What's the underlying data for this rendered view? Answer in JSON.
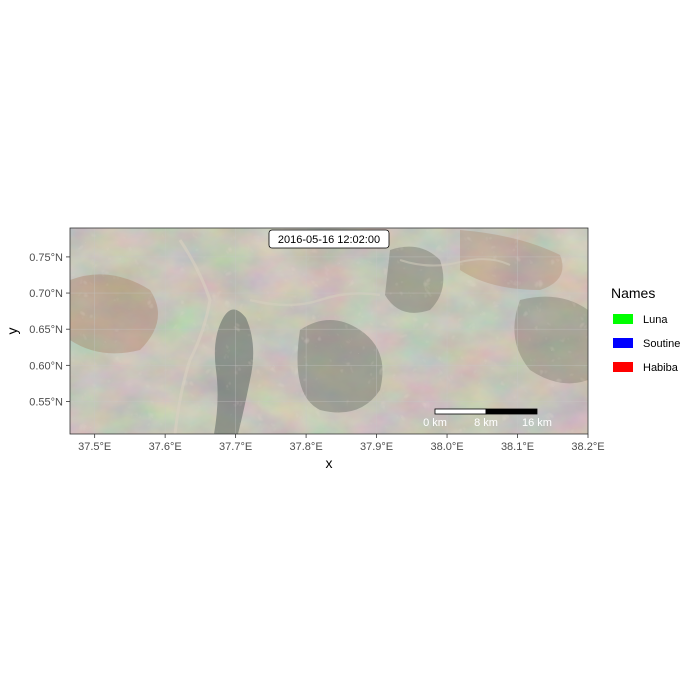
{
  "map": {
    "timestamp": "2016-05-16 12:02:00",
    "x_axis_title": "x",
    "y_axis_title": "y",
    "x_range": [
      37.465,
      38.2
    ],
    "y_range": [
      0.505,
      0.79
    ],
    "x_ticks": [
      {
        "value": 37.5,
        "label": "37.5°E"
      },
      {
        "value": 37.6,
        "label": "37.6°E"
      },
      {
        "value": 37.7,
        "label": "37.7°E"
      },
      {
        "value": 37.8,
        "label": "37.8°E"
      },
      {
        "value": 37.9,
        "label": "37.9°E"
      },
      {
        "value": 38.0,
        "label": "38.0°E"
      },
      {
        "value": 38.1,
        "label": "38.1°E"
      },
      {
        "value": 38.2,
        "label": "38.2°E"
      }
    ],
    "y_ticks": [
      {
        "value": 0.55,
        "label": "0.55°N"
      },
      {
        "value": 0.6,
        "label": "0.60°N"
      },
      {
        "value": 0.65,
        "label": "0.65°N"
      },
      {
        "value": 0.7,
        "label": "0.70°N"
      },
      {
        "value": 0.75,
        "label": "0.75°N"
      }
    ],
    "background": "satellite-imagery",
    "scale_bar": {
      "labels": [
        "0 km",
        "8 km",
        "16 km"
      ],
      "colors": [
        "#ffffff",
        "#000000"
      ]
    }
  },
  "legend": {
    "title": "Names",
    "items": [
      {
        "label": "Luna",
        "color": "#00ff00"
      },
      {
        "label": "Soutine",
        "color": "#0000ff"
      },
      {
        "label": "Habiba",
        "color": "#ff0000"
      }
    ]
  }
}
